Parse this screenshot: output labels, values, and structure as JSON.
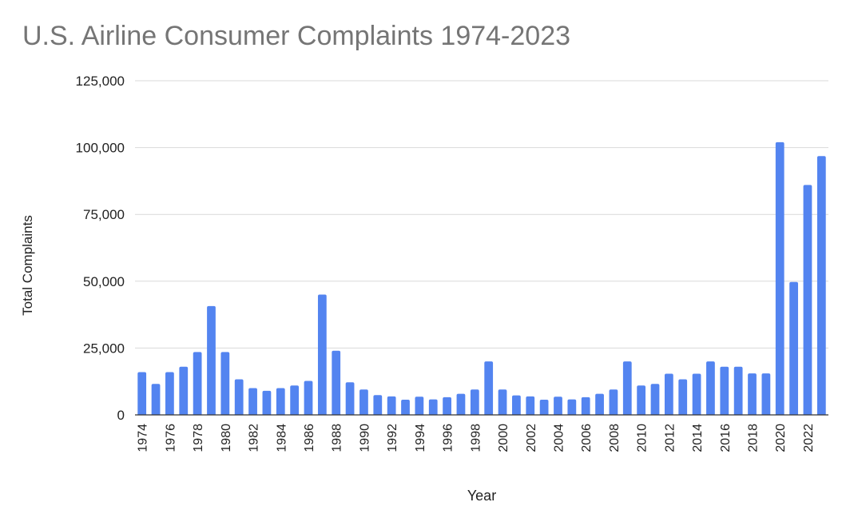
{
  "chart_data": {
    "type": "bar",
    "title": "U.S. Airline Consumer Complaints 1974-2023",
    "xlabel": "Year",
    "ylabel": "Total Complaints",
    "ylim": [
      0,
      125000
    ],
    "y_ticks": [
      0,
      25000,
      50000,
      75000,
      100000,
      125000
    ],
    "y_tick_labels": [
      "0",
      "25,000",
      "50,000",
      "75,000",
      "100,000",
      "125,000"
    ],
    "x_tick_labels": [
      "1974",
      "1976",
      "1978",
      "1980",
      "1982",
      "1984",
      "1986",
      "1988",
      "1990",
      "1992",
      "1994",
      "1996",
      "1998",
      "2000",
      "2002",
      "2004",
      "2006",
      "2008",
      "2010",
      "2012",
      "2014",
      "2016",
      "2018",
      "2020",
      "2022"
    ],
    "grid": true,
    "bar_color": "#5384f0",
    "categories": [
      "1974",
      "1975",
      "1976",
      "1977",
      "1978",
      "1979",
      "1980",
      "1981",
      "1982",
      "1983",
      "1984",
      "1985",
      "1986",
      "1987",
      "1988",
      "1989",
      "1990",
      "1991",
      "1992",
      "1993",
      "1994",
      "1995",
      "1996",
      "1997",
      "1998",
      "1999",
      "2000",
      "2001",
      "2002",
      "2003",
      "2004",
      "2005",
      "2006",
      "2007",
      "2008",
      "2009",
      "2010",
      "2011",
      "2012",
      "2013",
      "2014",
      "2015",
      "2016",
      "2017",
      "2018",
      "2019",
      "2020",
      "2021",
      "2022",
      "2023"
    ],
    "values": [
      16000,
      11600,
      16000,
      18000,
      23500,
      40700,
      23500,
      13300,
      10000,
      9000,
      10000,
      11000,
      12700,
      45000,
      24000,
      12200,
      9500,
      7400,
      6900,
      5700,
      6800,
      5800,
      6600,
      7900,
      9500,
      20000,
      9500,
      7300,
      6900,
      5700,
      6800,
      5800,
      6600,
      7900,
      9500,
      20000,
      11000,
      11600,
      15400,
      13300,
      15400,
      20000,
      18000,
      18000,
      15500,
      15500,
      102000,
      49700,
      86000,
      96800
    ]
  }
}
